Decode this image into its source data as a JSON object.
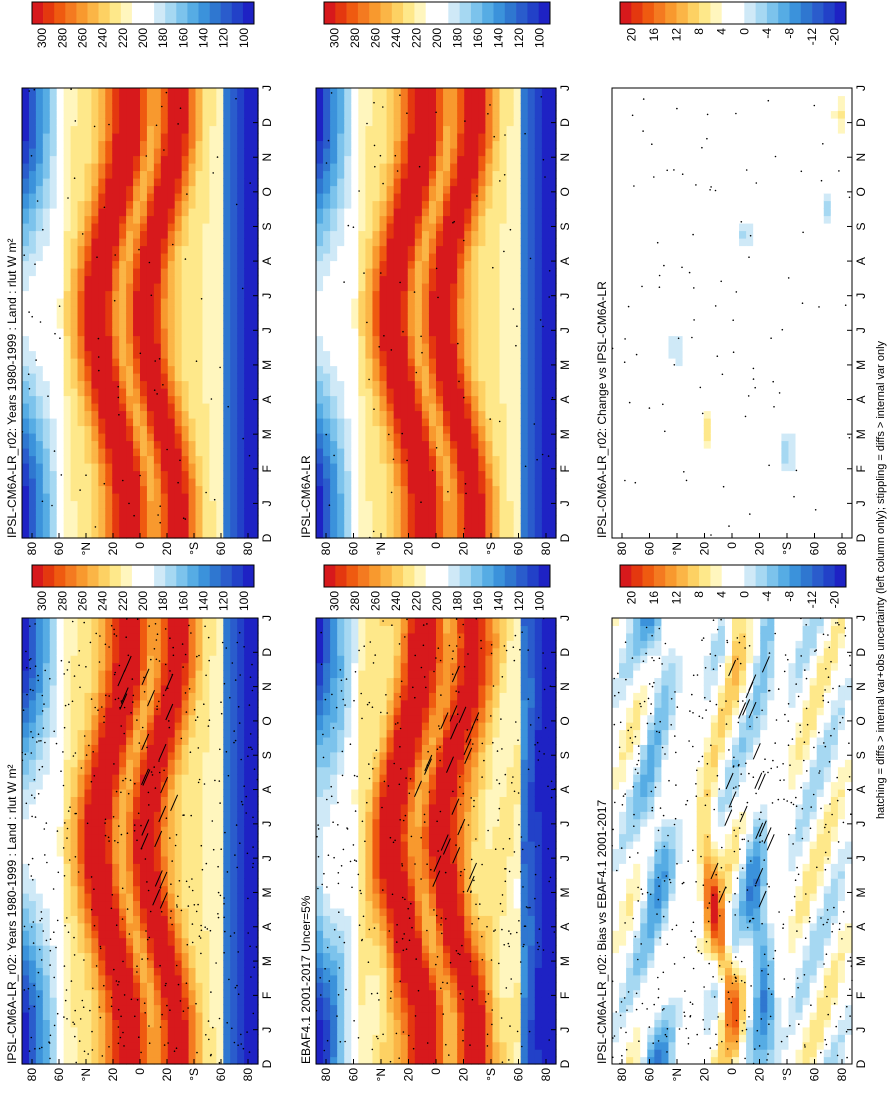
{
  "figure": {
    "footnote": "hatching = diffs > internal var+obs uncertainty (left column only); stippling = diffs > internal var only"
  },
  "shared": {
    "lat_ticks": [
      "80",
      "60",
      "°N",
      "20",
      "0",
      "20",
      "°S",
      "60",
      "80"
    ],
    "month_ticks": [
      "D",
      "J",
      "F",
      "M",
      "A",
      "M",
      "J",
      "J",
      "A",
      "S",
      "O",
      "N",
      "D",
      "J"
    ]
  },
  "chart_data": [
    {
      "id": "model-left",
      "type": "heatmap",
      "title": "IPSL-CM6A-LR_r02: Years 1980-1999 : Land : rlut W m²",
      "x_axis": "month (D..J)",
      "y_axis": "latitude (80°N to 80°S)",
      "colorbar": {
        "kind": "abs",
        "ticks": [
          "300",
          "280",
          "260",
          "240",
          "220",
          "200",
          "180",
          "160",
          "140",
          "120",
          "100"
        ]
      }
    },
    {
      "id": "obs",
      "type": "heatmap",
      "title": "EBAF4.1 2001-2017 Uncer=5%",
      "x_axis": "month (D..J)",
      "y_axis": "latitude (80°N to 80°S)",
      "colorbar": {
        "kind": "abs",
        "ticks": [
          "300",
          "280",
          "260",
          "240",
          "220",
          "200",
          "180",
          "160",
          "140",
          "120",
          "100"
        ]
      }
    },
    {
      "id": "bias",
      "type": "heatmap",
      "title": "IPSL-CM6A-LR_r02: Bias vs EBAF4.1 2001-2017",
      "x_axis": "month (D..J)",
      "y_axis": "latitude (80°N to 80°S)",
      "colorbar": {
        "kind": "diff",
        "ticks": [
          "20",
          "16",
          "12",
          "8",
          "4",
          "0",
          "-4",
          "-8",
          "-12",
          "-20"
        ]
      }
    },
    {
      "id": "model-right",
      "type": "heatmap",
      "title": "IPSL-CM6A-LR_r02: Years 1980-1999 : Land : rlut W m²",
      "x_axis": "month (D..J)",
      "y_axis": "latitude (80°N to 80°S)",
      "colorbar": {
        "kind": "abs",
        "ticks": [
          "300",
          "280",
          "260",
          "240",
          "220",
          "200",
          "180",
          "160",
          "140",
          "120",
          "100"
        ]
      }
    },
    {
      "id": "reference-model",
      "type": "heatmap",
      "title": "IPSL-CM6A-LR",
      "x_axis": "month (D..J)",
      "y_axis": "latitude (80°N to 80°S)",
      "colorbar": {
        "kind": "abs",
        "ticks": [
          "300",
          "280",
          "260",
          "240",
          "220",
          "200",
          "180",
          "160",
          "140",
          "120",
          "100"
        ]
      }
    },
    {
      "id": "change",
      "type": "heatmap",
      "title": "IPSL-CM6A-LR_r02: Change vs IPSL-CM6A-LR",
      "x_axis": "month (D..J)",
      "y_axis": "latitude (80°N to 80°S)",
      "colorbar": {
        "kind": "diff",
        "ticks": [
          "20",
          "16",
          "12",
          "8",
          "4",
          "0",
          "-4",
          "-8",
          "-12",
          "-20"
        ]
      }
    }
  ]
}
